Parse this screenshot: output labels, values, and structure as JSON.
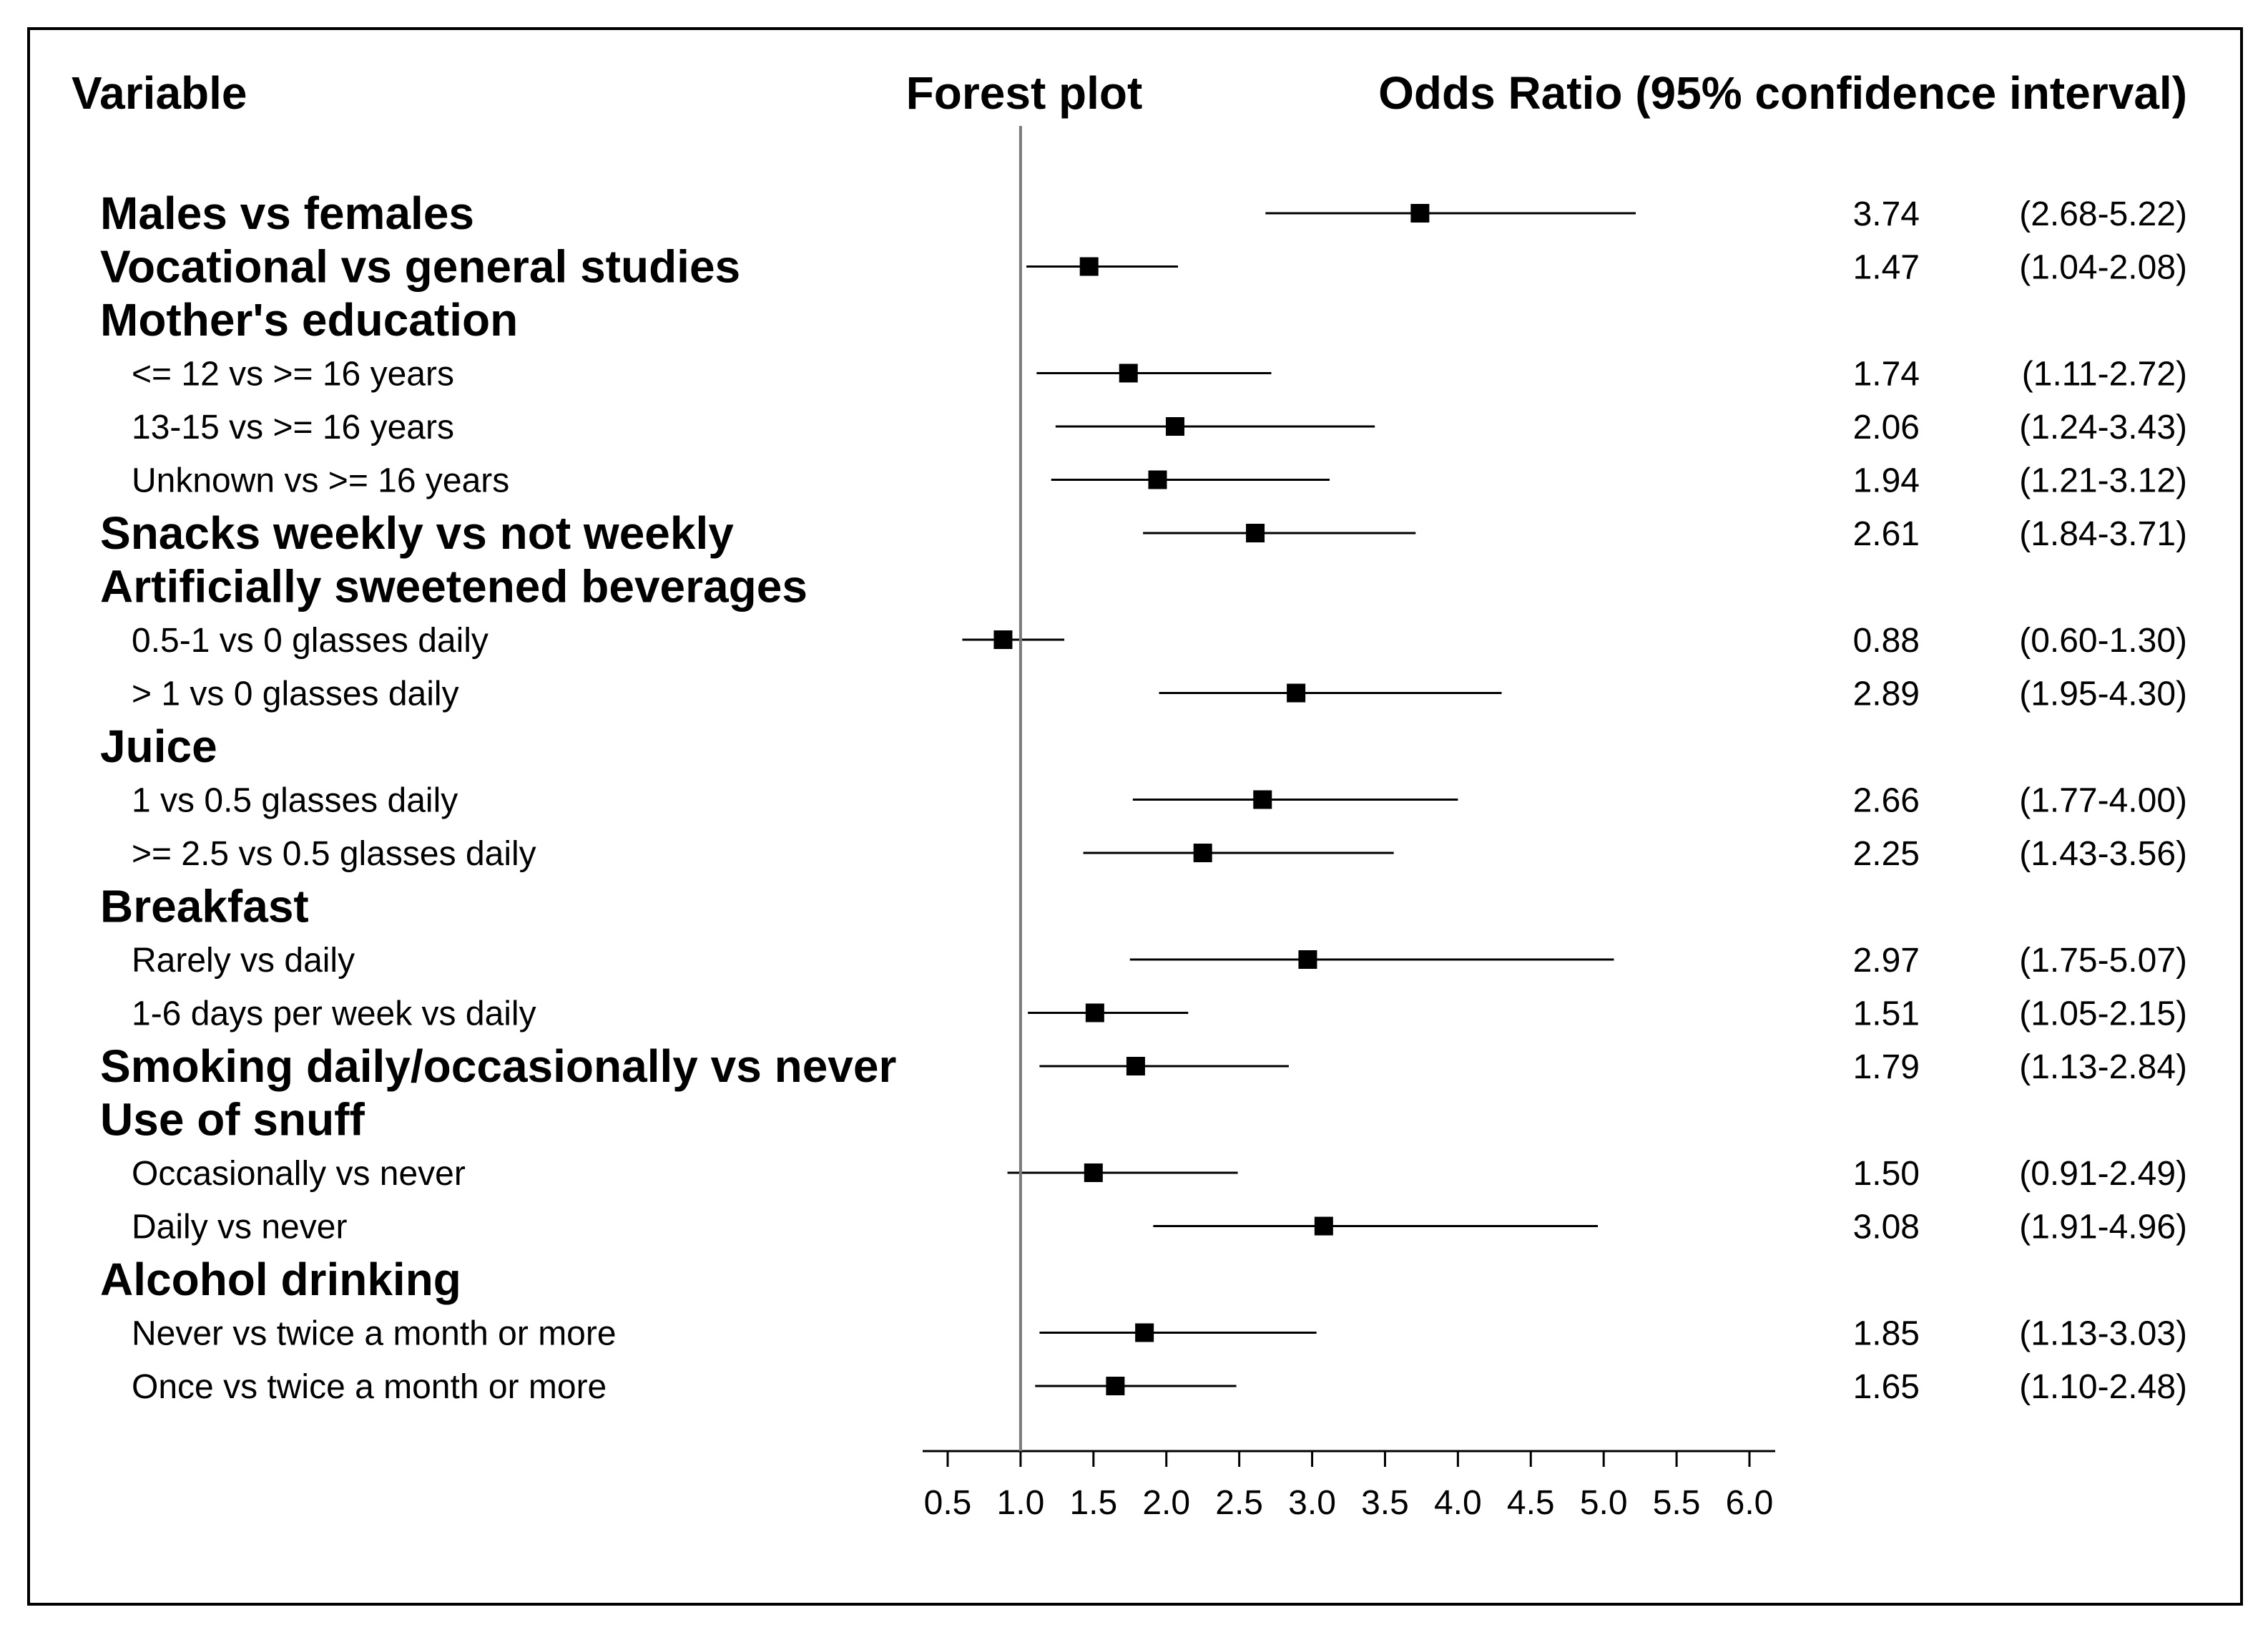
{
  "chart_data": {
    "type": "forest",
    "headers": {
      "variable": "Variable",
      "plot": "Forest plot",
      "odds": "Odds Ratio (95% confidence interval)"
    },
    "reference_line": 1.0,
    "xlim": [
      0.5,
      6.0
    ],
    "xticks": [
      "0.5",
      "1.0",
      "1.5",
      "2.0",
      "2.5",
      "3.0",
      "3.5",
      "4.0",
      "4.5",
      "5.0",
      "5.5",
      "6.0"
    ],
    "rows": [
      {
        "label": "Males vs females",
        "level": 0,
        "or": 3.74,
        "lo": 2.68,
        "hi": 5.22,
        "or_text": "3.74",
        "ci_text": "(2.68-5.22)"
      },
      {
        "label": "Vocational vs general studies",
        "level": 0,
        "or": 1.47,
        "lo": 1.04,
        "hi": 2.08,
        "or_text": "1.47",
        "ci_text": "(1.04-2.08)"
      },
      {
        "label": "Mother's education",
        "level": 0
      },
      {
        "label": "<= 12 vs >= 16 years",
        "level": 1,
        "or": 1.74,
        "lo": 1.11,
        "hi": 2.72,
        "or_text": "1.74",
        "ci_text": "(1.11-2.72)"
      },
      {
        "label": "13-15 vs >= 16 years",
        "level": 1,
        "or": 2.06,
        "lo": 1.24,
        "hi": 3.43,
        "or_text": "2.06",
        "ci_text": "(1.24-3.43)"
      },
      {
        "label": "Unknown vs >= 16 years",
        "level": 1,
        "or": 1.94,
        "lo": 1.21,
        "hi": 3.12,
        "or_text": "1.94",
        "ci_text": "(1.21-3.12)"
      },
      {
        "label": "Snacks weekly vs not weekly",
        "level": 0,
        "or": 2.61,
        "lo": 1.84,
        "hi": 3.71,
        "or_text": "2.61",
        "ci_text": "(1.84-3.71)"
      },
      {
        "label": "Artificially sweetened beverages",
        "level": 0
      },
      {
        "label": "0.5-1 vs 0 glasses daily",
        "level": 1,
        "or": 0.88,
        "lo": 0.6,
        "hi": 1.3,
        "or_text": "0.88",
        "ci_text": "(0.60-1.30)"
      },
      {
        "label": "> 1 vs 0 glasses daily",
        "level": 1,
        "or": 2.89,
        "lo": 1.95,
        "hi": 4.3,
        "or_text": "2.89",
        "ci_text": "(1.95-4.30)"
      },
      {
        "label": "Juice",
        "level": 0
      },
      {
        "label": "1 vs 0.5 glasses daily",
        "level": 1,
        "or": 2.66,
        "lo": 1.77,
        "hi": 4.0,
        "or_text": "2.66",
        "ci_text": "(1.77-4.00)"
      },
      {
        "label": ">= 2.5 vs 0.5 glasses daily",
        "level": 1,
        "or": 2.25,
        "lo": 1.43,
        "hi": 3.56,
        "or_text": "2.25",
        "ci_text": "(1.43-3.56)"
      },
      {
        "label": "Breakfast",
        "level": 0
      },
      {
        "label": "Rarely vs daily",
        "level": 1,
        "or": 2.97,
        "lo": 1.75,
        "hi": 5.07,
        "or_text": "2.97",
        "ci_text": "(1.75-5.07)"
      },
      {
        "label": "1-6 days per week vs daily",
        "level": 1,
        "or": 1.51,
        "lo": 1.05,
        "hi": 2.15,
        "or_text": "1.51",
        "ci_text": "(1.05-2.15)"
      },
      {
        "label": "Smoking daily/occasionally vs never",
        "level": 0,
        "or": 1.79,
        "lo": 1.13,
        "hi": 2.84,
        "or_text": "1.79",
        "ci_text": "(1.13-2.84)"
      },
      {
        "label": "Use of snuff",
        "level": 0
      },
      {
        "label": "Occasionally vs never",
        "level": 1,
        "or": 1.5,
        "lo": 0.91,
        "hi": 2.49,
        "or_text": "1.50",
        "ci_text": "(0.91-2.49)"
      },
      {
        "label": "Daily vs never",
        "level": 1,
        "or": 3.08,
        "lo": 1.91,
        "hi": 4.96,
        "or_text": "3.08",
        "ci_text": "(1.91-4.96)"
      },
      {
        "label": "Alcohol drinking",
        "level": 0
      },
      {
        "label": "Never vs twice a month or more",
        "level": 1,
        "or": 1.85,
        "lo": 1.13,
        "hi": 3.03,
        "or_text": "1.85",
        "ci_text": "(1.13-3.03)"
      },
      {
        "label": "Once vs twice a month or more",
        "level": 1,
        "or": 1.65,
        "lo": 1.1,
        "hi": 2.48,
        "or_text": "1.65",
        "ci_text": "(1.10-2.48)"
      }
    ]
  }
}
